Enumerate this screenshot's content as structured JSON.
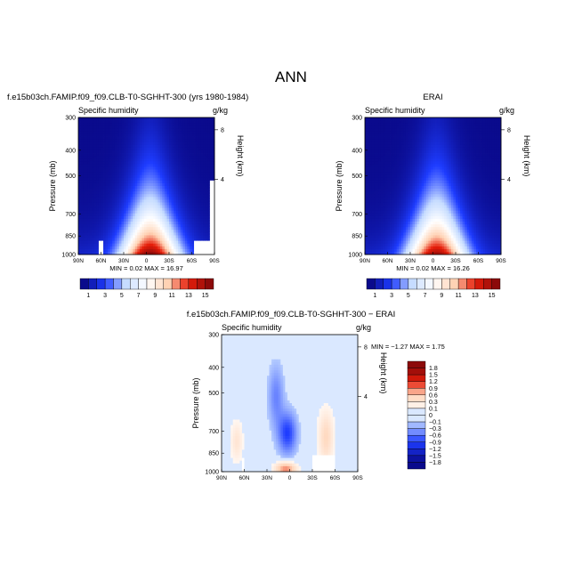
{
  "figure": {
    "title": "ANN"
  },
  "colors": {
    "dark_blue": "#0a0a8c",
    "mid_blue": "#1e3cff",
    "light_blue": "#c6dcff",
    "white": "#ffffff",
    "peach": "#ffd2b4",
    "red": "#e61e0a",
    "dark_red": "#8c0a0a"
  },
  "chart_data": [
    {
      "type": "heatmap",
      "title": "f.e15b03ch.FAMIP.f09_f09.CLB-T0-SGHHT-300 (yrs 1980-1984)",
      "subtitle": "Specific humidity",
      "units": "g/kg",
      "ylabel": "Pressure (mb)",
      "ylabel_right": "Height (km)",
      "x_ticks": [
        "90N",
        "60N",
        "30N",
        "0",
        "30S",
        "60S",
        "90S"
      ],
      "y_ticks": [
        "300",
        "400",
        "500",
        "700",
        "850",
        "1000"
      ],
      "y_ticks_right": [
        "8",
        "4"
      ],
      "stats": {
        "min_label": "MIN =",
        "min": "0.02",
        "max_label": "MAX =",
        "max": "16.97"
      },
      "colorbar": {
        "orientation": "horizontal",
        "labels": [
          "1",
          "3",
          "5",
          "7",
          "9",
          "11",
          "13",
          "15"
        ]
      }
    },
    {
      "type": "heatmap",
      "title": "ERAI",
      "subtitle": "Specific humidity",
      "units": "g/kg",
      "ylabel": "Pressure (mb)",
      "ylabel_right": "Height (km)",
      "x_ticks": [
        "90N",
        "60N",
        "30N",
        "0",
        "30S",
        "60S",
        "90S"
      ],
      "y_ticks": [
        "300",
        "400",
        "500",
        "700",
        "850",
        "1000"
      ],
      "y_ticks_right": [
        "8",
        "4"
      ],
      "stats": {
        "min_label": "MIN =",
        "min": "0.02",
        "max_label": "MAX =",
        "max": "16.26"
      },
      "colorbar": {
        "orientation": "horizontal",
        "labels": [
          "1",
          "3",
          "5",
          "7",
          "9",
          "11",
          "13",
          "15"
        ]
      }
    },
    {
      "type": "heatmap",
      "title": "f.e15b03ch.FAMIP.f09_f09.CLB-T0-SGHHT-300 − ERAI",
      "subtitle": "Specific humidity",
      "units": "g/kg",
      "ylabel": "Pressure (mb)",
      "ylabel_right": "Height (km)",
      "x_ticks": [
        "90N",
        "60N",
        "30N",
        "0",
        "30S",
        "60S",
        "90S"
      ],
      "y_ticks": [
        "300",
        "400",
        "500",
        "700",
        "850",
        "1000"
      ],
      "y_ticks_right": [
        "8",
        "4"
      ],
      "stats": {
        "min_label": "MIN =",
        "min": "−1.27",
        "max_label": "MAX =",
        "max": "1.75"
      },
      "colorbar": {
        "orientation": "vertical",
        "labels": [
          "1.8",
          "1.5",
          "1.2",
          "0.9",
          "0.6",
          "0.3",
          "0.1",
          "0",
          "−0.1",
          "−0.3",
          "−0.6",
          "−0.9",
          "−1.2",
          "−1.5",
          "−1.8"
        ]
      }
    }
  ]
}
